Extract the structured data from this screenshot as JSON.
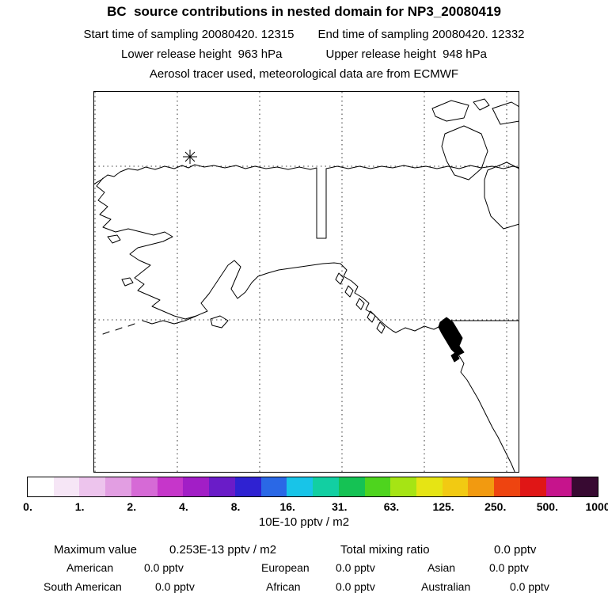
{
  "header": {
    "title": "BC  source contributions in nested domain for NP3_20080419",
    "start_time": "Start time of sampling 20080420. 12315",
    "end_time": "End time of sampling 20080420. 12332",
    "lower_release": "Lower release height  963 hPa",
    "upper_release": "Upper release height  948 hPa",
    "tracer_note": "Aerosol tracer used, meteorological data are from ECMWF"
  },
  "map": {
    "marker_name": "release-source-location"
  },
  "colorbar": {
    "ticks": [
      "0.",
      "1.",
      "2.",
      "4.",
      "8.",
      "16.",
      "31.",
      "63.",
      "125.",
      "250.",
      "500.",
      "1000."
    ],
    "unit_label": "10E-10 pptv / m2",
    "colors": [
      "#ffffff",
      "#f6e6f6",
      "#edc4ed",
      "#e29ee2",
      "#d66ad6",
      "#c636ca",
      "#a21ec6",
      "#6a1cc8",
      "#2f22d2",
      "#2a68e6",
      "#18c4e8",
      "#12cfa2",
      "#15c254",
      "#4ed41e",
      "#a6e414",
      "#e6e414",
      "#f2ca12",
      "#f29a10",
      "#ee4410",
      "#e01616",
      "#c6148c",
      "#380a32"
    ]
  },
  "footer": {
    "maximum": {
      "label": "Maximum value",
      "value": "0.253E-13 pptv / m2"
    },
    "total": {
      "label": "Total mixing ratio",
      "value": "0.0 pptv"
    },
    "regions": [
      {
        "label": "American",
        "value": "0.0 pptv"
      },
      {
        "label": "European",
        "value": "0.0 pptv"
      },
      {
        "label": "Asian",
        "value": "0.0 pptv"
      },
      {
        "label": "South American",
        "value": "0.0 pptv"
      },
      {
        "label": "African",
        "value": "0.0 pptv"
      },
      {
        "label": "Australian",
        "value": "0.0 pptv"
      }
    ]
  }
}
